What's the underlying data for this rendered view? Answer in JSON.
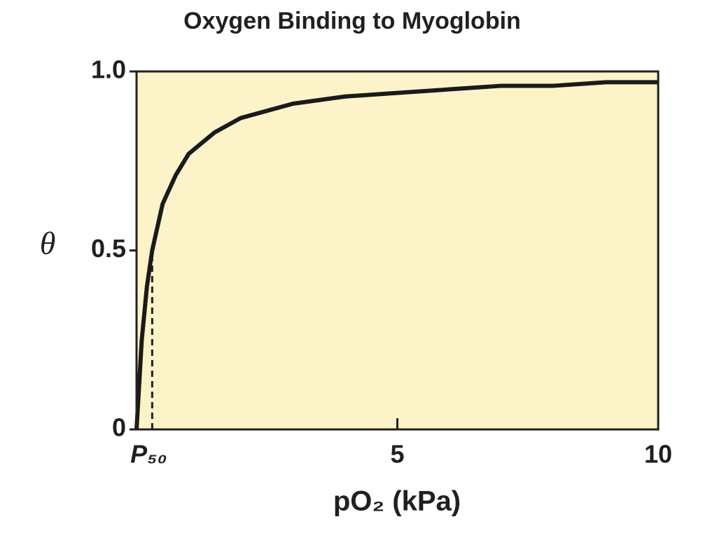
{
  "chart_data": {
    "type": "line",
    "title": "Oxygen Binding to Myoglobin",
    "x_label": "pO₂ (kPa)",
    "y_label": "θ",
    "x": [
      0,
      0.1,
      0.2,
      0.3,
      0.5,
      0.75,
      1,
      1.5,
      2,
      3,
      4,
      5,
      6,
      7,
      8,
      9,
      10
    ],
    "series": [
      {
        "name": "Myoglobin",
        "color": "#1a1a1a",
        "values": [
          0,
          0.25,
          0.4,
          0.5,
          0.63,
          0.71,
          0.77,
          0.83,
          0.87,
          0.91,
          0.93,
          0.94,
          0.95,
          0.96,
          0.96,
          0.97,
          0.97
        ]
      }
    ],
    "xlim": [
      0,
      10
    ],
    "ylim": [
      0,
      1
    ],
    "xticks": [
      {
        "value": 0.3,
        "label": "P₅₀"
      },
      5,
      10
    ],
    "yticks": [
      0,
      0.5,
      {
        "value": 1,
        "label": "1.0"
      }
    ],
    "background": "#fdf3c8"
  }
}
